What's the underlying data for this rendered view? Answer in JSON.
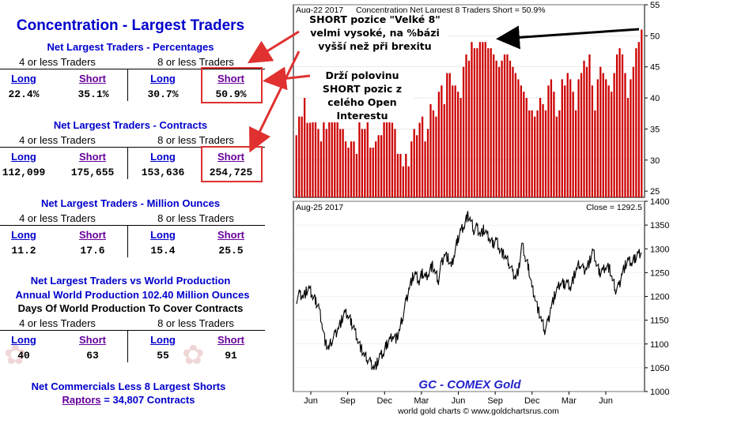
{
  "left": {
    "title": "Concentration - Largest Traders",
    "sections": [
      {
        "title": "Net Largest Traders - Percentages",
        "groups": [
          "4 or less Traders",
          "8 or less Traders"
        ],
        "headers": [
          "Long",
          "Short",
          "Long",
          "Short"
        ],
        "values": [
          "22.4%",
          "35.1%",
          "30.7%",
          "50.9%"
        ]
      },
      {
        "title": "Net Largest Traders - Contracts",
        "groups": [
          "4 or less Traders",
          "8 or less Traders"
        ],
        "headers": [
          "Long",
          "Short",
          "Long",
          "Short"
        ],
        "values": [
          "112,099",
          "175,655",
          "153,636",
          "254,725"
        ]
      },
      {
        "title": "Net Largest Traders - Million Ounces",
        "groups": [
          "4 or less Traders",
          "8 or less Traders"
        ],
        "headers": [
          "Long",
          "Short",
          "Long",
          "Short"
        ],
        "values": [
          "11.2",
          "17.6",
          "15.4",
          "25.5"
        ]
      },
      {
        "title_lines": [
          "Net Largest Traders vs World Production",
          "Annual World Production 102.40 Million Ounces",
          "Days Of World Production To Cover Contracts"
        ],
        "groups": [
          "4 or less Traders",
          "8 or less Traders"
        ],
        "headers": [
          "Long",
          "Short",
          "Long",
          "Short"
        ],
        "values": [
          "40",
          "63",
          "55",
          "91"
        ]
      }
    ],
    "commercials_title": "Net Commercials Less 8 Largest Shorts",
    "raptors_link": "Raptors",
    "raptors_rest": "= 34,807 Contracts"
  },
  "annotations": {
    "top": "SHORT pozice \"Velké 8\" velmi vysoké, na %bázi vyšší než při brexitu",
    "middle": "Drží polovinu SHORT pozic z celého Open Interestu"
  },
  "chart_data": [
    {
      "type": "bar",
      "header_date": "Aug-22  2017",
      "title": "Concentration Net Largest 8 Traders Short = 50.9%",
      "ylim": [
        24,
        55
      ],
      "yticks": [
        25,
        30,
        35,
        40,
        45,
        50,
        55
      ],
      "color": "#cc0000",
      "values": [
        34,
        37,
        37,
        40,
        36,
        36,
        39,
        38,
        35,
        33,
        37,
        35,
        38,
        38,
        37,
        37,
        35,
        35,
        33,
        32,
        33,
        33,
        31,
        37,
        35,
        35,
        37,
        32,
        32,
        33,
        34,
        34,
        37,
        39,
        38,
        36,
        35,
        31,
        31,
        29,
        31,
        29,
        33,
        35,
        34,
        36,
        37,
        33,
        35,
        39,
        38,
        37,
        41,
        42,
        39,
        44,
        44,
        42,
        42,
        41,
        40,
        45,
        47,
        46,
        49,
        48,
        48,
        49,
        49,
        49,
        48,
        48,
        47,
        46,
        45,
        46,
        47,
        47,
        46,
        45,
        44,
        43,
        42,
        41,
        40,
        38,
        38,
        37,
        38,
        40,
        39,
        38,
        42,
        43,
        41,
        37,
        38,
        43,
        42,
        44,
        43,
        41,
        38,
        43,
        44,
        46,
        45,
        47,
        42,
        38,
        43,
        45,
        44,
        43,
        42,
        41,
        44,
        47,
        48,
        47,
        44,
        40,
        43,
        45,
        48,
        49,
        51
      ]
    },
    {
      "type": "line",
      "header_date": "Aug-25  2017",
      "title": "Close = 1292.5",
      "ylim": [
        1000,
        1400
      ],
      "yticks": [
        1000,
        1050,
        1100,
        1150,
        1200,
        1250,
        1300,
        1350,
        1400
      ],
      "xticks": [
        "Jun",
        "Sep",
        "Dec",
        "Mar",
        "Jun",
        "Sep",
        "Dec",
        "Mar",
        "Jun"
      ],
      "label": "GC - COMEX Gold",
      "footer": "world gold charts © www.goldchartsrus.com",
      "values": [
        1195,
        1205,
        1200,
        1210,
        1215,
        1200,
        1190,
        1175,
        1140,
        1100,
        1090,
        1110,
        1120,
        1135,
        1150,
        1165,
        1160,
        1145,
        1130,
        1110,
        1090,
        1075,
        1070,
        1060,
        1050,
        1060,
        1075,
        1080,
        1100,
        1110,
        1120,
        1110,
        1130,
        1160,
        1190,
        1220,
        1240,
        1245,
        1230,
        1250,
        1240,
        1250,
        1265,
        1250,
        1235,
        1270,
        1290,
        1280,
        1260,
        1290,
        1320,
        1340,
        1350,
        1370,
        1360,
        1340,
        1345,
        1330,
        1340,
        1330,
        1320,
        1310,
        1320,
        1300,
        1290,
        1280,
        1270,
        1250,
        1240,
        1260,
        1310,
        1280,
        1260,
        1220,
        1200,
        1170,
        1150,
        1130,
        1145,
        1180,
        1200,
        1215,
        1230,
        1225,
        1230,
        1220,
        1240,
        1260,
        1270,
        1255,
        1260,
        1275,
        1295,
        1270,
        1250,
        1255,
        1265,
        1260,
        1235,
        1215,
        1220,
        1250,
        1265,
        1275,
        1270,
        1280,
        1290,
        1292.5
      ]
    }
  ]
}
